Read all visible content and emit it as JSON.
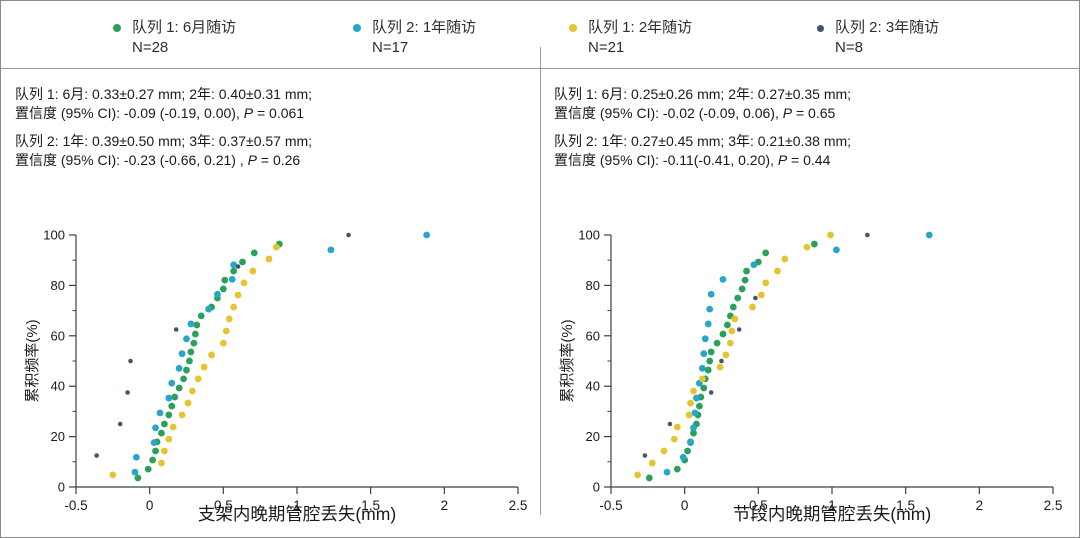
{
  "labels": {
    "p_italic": "P"
  },
  "colors": {
    "cohort1_6m": "#2AA05A",
    "cohort2_1y": "#29A5C8",
    "cohort1_2y": "#E6C42F",
    "cohort2_3y": "#44546A",
    "axis": "#3f3f3f",
    "text": "#1a1a1a",
    "divider": "#9a9a9a"
  },
  "legend": {
    "items": [
      {
        "label": "队列 1: 6月随访",
        "n": "N=28",
        "color": "#2AA05A"
      },
      {
        "label": "队列 2: 1年随访",
        "n": "N=17",
        "color": "#29A5C8"
      },
      {
        "label": "队列 1: 2年随访",
        "n": "N=21",
        "color": "#E6C42F"
      },
      {
        "label": "队列 2: 3年随访",
        "n": "N=8",
        "color": "#44546A"
      }
    ]
  },
  "panels": [
    {
      "stats": {
        "line1": "队列 1: 6月: 0.33±0.27 mm; 2年: 0.40±0.31 mm;",
        "line2_pre": "置信度 (95% CI): -0.09 (-0.19, 0.00), ",
        "line2_post": " = 0.061",
        "line3": "队列 2: 1年: 0.39±0.50 mm; 3年: 0.37±0.57 mm;",
        "line4_pre": "置信度 (95% CI): -0.23 (-0.66, 0.21) , ",
        "line4_post": " = 0.26"
      }
    },
    {
      "stats": {
        "line1": "队列 1: 6月: 0.25±0.26 mm; 2年: 0.27±0.35 mm;",
        "line2_pre": "置信度 (95% CI): -0.02 (-0.09, 0.06), ",
        "line2_post": " = 0.65",
        "line3": "队列 2: 1年: 0.27±0.45 mm; 3年: 0.21±0.38 mm;",
        "line4_pre": "置信度 (95% CI): -0.11(-0.41, 0.20), ",
        "line4_post": " = 0.44"
      }
    }
  ],
  "chart_data": [
    {
      "type": "scatter",
      "title": "",
      "xlabel": "支架内晚期管腔丢失(mm)",
      "ylabel": "累积频率(%)",
      "xlim": [
        -0.5,
        2.5
      ],
      "ylim": [
        0,
        100
      ],
      "xticks": [
        -0.5,
        0,
        0.5,
        1,
        1.5,
        2,
        2.5
      ],
      "xtick_labels": [
        "-0.5",
        "0",
        "0.5",
        "1",
        "1.5",
        "2",
        "2.5"
      ],
      "yticks": [
        0,
        20,
        40,
        60,
        80,
        100
      ],
      "yticks_minor": [
        10,
        30,
        50,
        70,
        90
      ],
      "grid": false,
      "legend_position": "top",
      "series": [
        {
          "name": "队列 1: 6月随访",
          "n": 28,
          "color": "#2AA05A",
          "marker_r": 3.4,
          "points": [
            [
              -0.08,
              3.6
            ],
            [
              -0.01,
              7.1
            ],
            [
              0.02,
              10.7
            ],
            [
              0.04,
              14.3
            ],
            [
              0.05,
              17.9
            ],
            [
              0.08,
              21.4
            ],
            [
              0.1,
              25.0
            ],
            [
              0.13,
              28.6
            ],
            [
              0.15,
              32.1
            ],
            [
              0.17,
              35.7
            ],
            [
              0.2,
              39.3
            ],
            [
              0.23,
              42.9
            ],
            [
              0.25,
              46.4
            ],
            [
              0.27,
              50.0
            ],
            [
              0.28,
              53.6
            ],
            [
              0.3,
              57.1
            ],
            [
              0.31,
              60.7
            ],
            [
              0.32,
              64.3
            ],
            [
              0.35,
              67.9
            ],
            [
              0.42,
              71.4
            ],
            [
              0.46,
              75.0
            ],
            [
              0.5,
              78.6
            ],
            [
              0.51,
              82.1
            ],
            [
              0.57,
              85.7
            ],
            [
              0.63,
              89.3
            ],
            [
              0.71,
              92.9
            ],
            [
              0.88,
              96.4
            ]
          ]
        },
        {
          "name": "队列 2: 1年随访",
          "n": 17,
          "color": "#29A5C8",
          "marker_r": 3.4,
          "points": [
            [
              -0.1,
              5.9
            ],
            [
              -0.09,
              11.8
            ],
            [
              0.03,
              17.6
            ],
            [
              0.04,
              23.5
            ],
            [
              0.07,
              29.4
            ],
            [
              0.13,
              35.3
            ],
            [
              0.15,
              41.2
            ],
            [
              0.2,
              47.1
            ],
            [
              0.22,
              52.9
            ],
            [
              0.25,
              58.8
            ],
            [
              0.28,
              64.7
            ],
            [
              0.4,
              70.6
            ],
            [
              0.46,
              76.5
            ],
            [
              0.56,
              82.4
            ],
            [
              0.57,
              88.2
            ],
            [
              1.23,
              94.1
            ],
            [
              1.88,
              100
            ]
          ]
        },
        {
          "name": "队列 1: 2年随访",
          "n": 21,
          "color": "#E6C42F",
          "marker_r": 3.4,
          "points": [
            [
              -0.25,
              4.8
            ],
            [
              0.08,
              9.5
            ],
            [
              0.1,
              14.3
            ],
            [
              0.13,
              19.0
            ],
            [
              0.16,
              23.8
            ],
            [
              0.22,
              28.6
            ],
            [
              0.26,
              33.3
            ],
            [
              0.29,
              38.1
            ],
            [
              0.33,
              42.9
            ],
            [
              0.37,
              47.6
            ],
            [
              0.42,
              52.4
            ],
            [
              0.5,
              57.1
            ],
            [
              0.52,
              61.9
            ],
            [
              0.54,
              66.7
            ],
            [
              0.57,
              71.4
            ],
            [
              0.6,
              76.2
            ],
            [
              0.64,
              81.0
            ],
            [
              0.7,
              85.7
            ],
            [
              0.81,
              90.5
            ],
            [
              0.86,
              95.2
            ]
          ]
        },
        {
          "name": "队列 2: 3年随访",
          "n": 8,
          "color": "#44546A",
          "marker_r": 2.3,
          "points": [
            [
              -0.36,
              12.5
            ],
            [
              -0.2,
              25.0
            ],
            [
              -0.15,
              37.5
            ],
            [
              -0.13,
              50.0
            ],
            [
              0.18,
              62.5
            ],
            [
              0.6,
              87.5
            ],
            [
              1.35,
              100
            ]
          ]
        }
      ]
    },
    {
      "type": "scatter",
      "title": "",
      "xlabel": "节段内晚期管腔丢失(mm)",
      "ylabel": "累积频率(%)",
      "xlim": [
        -0.5,
        2.5
      ],
      "ylim": [
        0,
        100
      ],
      "xticks": [
        -0.5,
        0,
        0.5,
        1,
        1.5,
        2,
        2.5
      ],
      "xtick_labels": [
        "-0.5",
        "0",
        "0.5",
        "1",
        "1.5",
        "2",
        "2.5"
      ],
      "yticks": [
        0,
        20,
        40,
        60,
        80,
        100
      ],
      "yticks_minor": [
        10,
        30,
        50,
        70,
        90
      ],
      "grid": false,
      "legend_position": "top",
      "series": [
        {
          "name": "队列 1: 6月随访",
          "n": 28,
          "color": "#2AA05A",
          "marker_r": 3.4,
          "points": [
            [
              -0.24,
              3.6
            ],
            [
              -0.05,
              7.1
            ],
            [
              0.0,
              10.7
            ],
            [
              0.02,
              14.3
            ],
            [
              0.04,
              17.9
            ],
            [
              0.06,
              21.4
            ],
            [
              0.08,
              25.0
            ],
            [
              0.09,
              28.6
            ],
            [
              0.1,
              32.1
            ],
            [
              0.11,
              35.7
            ],
            [
              0.13,
              39.3
            ],
            [
              0.14,
              42.9
            ],
            [
              0.16,
              46.4
            ],
            [
              0.17,
              50.0
            ],
            [
              0.18,
              53.6
            ],
            [
              0.22,
              57.1
            ],
            [
              0.26,
              60.7
            ],
            [
              0.29,
              64.3
            ],
            [
              0.31,
              67.9
            ],
            [
              0.33,
              71.4
            ],
            [
              0.36,
              75.0
            ],
            [
              0.39,
              78.6
            ],
            [
              0.41,
              82.1
            ],
            [
              0.42,
              85.7
            ],
            [
              0.5,
              89.3
            ],
            [
              0.55,
              92.9
            ],
            [
              0.88,
              96.4
            ]
          ]
        },
        {
          "name": "队列 2: 1年随访",
          "n": 17,
          "color": "#29A5C8",
          "marker_r": 3.4,
          "points": [
            [
              -0.12,
              5.9
            ],
            [
              -0.01,
              11.8
            ],
            [
              0.04,
              17.6
            ],
            [
              0.06,
              23.5
            ],
            [
              0.07,
              29.4
            ],
            [
              0.08,
              35.3
            ],
            [
              0.1,
              41.2
            ],
            [
              0.12,
              47.1
            ],
            [
              0.13,
              52.9
            ],
            [
              0.14,
              58.8
            ],
            [
              0.16,
              64.7
            ],
            [
              0.17,
              70.6
            ],
            [
              0.18,
              76.5
            ],
            [
              0.26,
              82.4
            ],
            [
              0.47,
              88.2
            ],
            [
              1.03,
              94.1
            ],
            [
              1.66,
              100
            ]
          ]
        },
        {
          "name": "队列 1: 2年随访",
          "n": 21,
          "color": "#E6C42F",
          "marker_r": 3.4,
          "points": [
            [
              -0.32,
              4.8
            ],
            [
              -0.22,
              9.5
            ],
            [
              -0.14,
              14.3
            ],
            [
              -0.07,
              19.0
            ],
            [
              -0.05,
              23.8
            ],
            [
              0.03,
              28.6
            ],
            [
              0.04,
              33.3
            ],
            [
              0.06,
              38.1
            ],
            [
              0.12,
              42.9
            ],
            [
              0.24,
              47.6
            ],
            [
              0.28,
              52.4
            ],
            [
              0.31,
              57.1
            ],
            [
              0.32,
              61.9
            ],
            [
              0.34,
              66.7
            ],
            [
              0.46,
              71.4
            ],
            [
              0.52,
              76.2
            ],
            [
              0.55,
              81.0
            ],
            [
              0.63,
              85.7
            ],
            [
              0.68,
              90.5
            ],
            [
              0.83,
              95.2
            ],
            [
              0.99,
              100
            ]
          ]
        },
        {
          "name": "队列 2: 3年随访",
          "n": 8,
          "color": "#44546A",
          "marker_r": 2.3,
          "points": [
            [
              -0.27,
              12.5
            ],
            [
              -0.1,
              25.0
            ],
            [
              0.18,
              37.5
            ],
            [
              0.25,
              50.0
            ],
            [
              0.37,
              62.5
            ],
            [
              0.48,
              75.0
            ],
            [
              1.24,
              100
            ]
          ]
        }
      ]
    }
  ]
}
